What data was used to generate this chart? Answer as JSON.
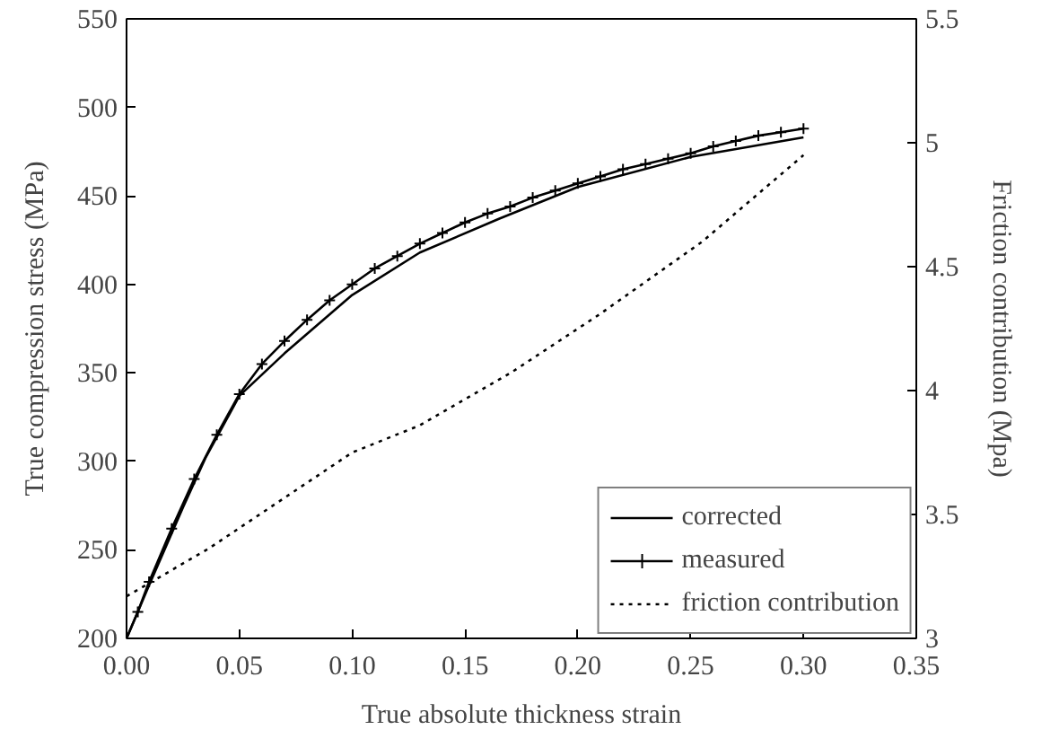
{
  "chart_data": {
    "type": "line",
    "xlabel": "True absolute thickness strain",
    "ylabel": "True compression stress (MPa)",
    "y2label": "Friction contribution (Mpa)",
    "xlim": [
      0,
      0.35
    ],
    "xticks": [
      {
        "value": 0,
        "label": "0.00"
      },
      0.05,
      {
        "value": 0.1,
        "label": "0.10"
      },
      0.15,
      {
        "value": 0.2,
        "label": "0.20"
      },
      0.25,
      {
        "value": 0.3,
        "label": "0.30"
      },
      0.35
    ],
    "ylim": [
      200,
      550
    ],
    "yticks": [
      200,
      250,
      300,
      350,
      400,
      450,
      500,
      550
    ],
    "y2lim": [
      3,
      5.5
    ],
    "y2ticks": [
      3,
      3.5,
      4,
      4.5,
      5,
      5.5
    ],
    "grid": false,
    "legend": "bottom right",
    "series": [
      {
        "name": "corrected",
        "color": "#000000",
        "marker": "none",
        "line_style": "solid",
        "x": [
          0,
          0.01,
          0.025,
          0.035,
          0.05,
          0.07,
          0.1,
          0.13,
          0.165,
          0.2,
          0.25,
          0.3
        ],
        "values": [
          200,
          230,
          274,
          302,
          337,
          361,
          394,
          418,
          437,
          455,
          472,
          483
        ]
      },
      {
        "name": "measured",
        "color": "#000000",
        "marker": "cross",
        "line_style": "solid",
        "x": [
          0,
          0.005,
          0.01,
          0.02,
          0.03,
          0.04,
          0.05,
          0.06,
          0.07,
          0.08,
          0.09,
          0.1,
          0.11,
          0.12,
          0.13,
          0.14,
          0.15,
          0.16,
          0.17,
          0.18,
          0.19,
          0.2,
          0.21,
          0.22,
          0.23,
          0.24,
          0.25,
          0.26,
          0.27,
          0.28,
          0.29,
          0.3
        ],
        "values": [
          200,
          215,
          232,
          262,
          290,
          315,
          338,
          355,
          368,
          380,
          391,
          400,
          409,
          416,
          423,
          429,
          435,
          440,
          444,
          449,
          453,
          457,
          461,
          465,
          468,
          471,
          474,
          478,
          481,
          484,
          486,
          488
        ]
      },
      {
        "name": "friction contribution",
        "color": "#000000",
        "marker": "none",
        "line_style": "dotted",
        "axis": "y2",
        "x": [
          0,
          0.036,
          0.1,
          0.13,
          0.17,
          0.21,
          0.255,
          0.3
        ],
        "values": [
          3.17,
          3.36,
          3.75,
          3.86,
          4.07,
          4.31,
          4.6,
          4.95
        ]
      }
    ]
  }
}
